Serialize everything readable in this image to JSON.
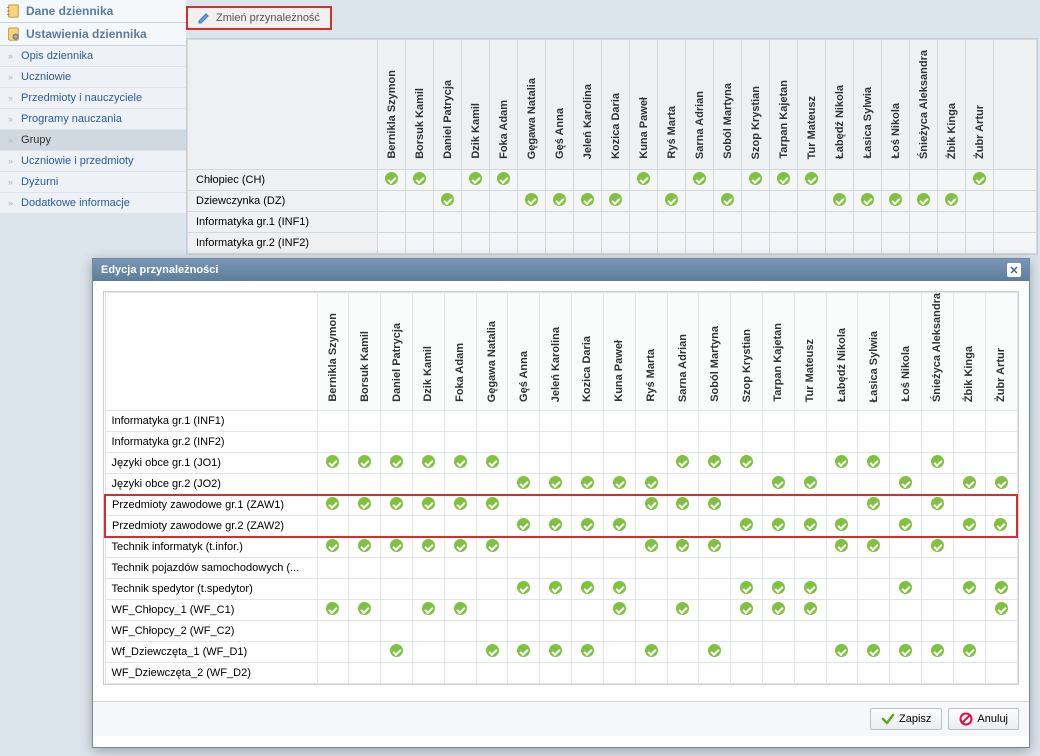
{
  "sidebar": {
    "header1": "Dane dziennika",
    "header2": "Ustawienia dziennika",
    "items": [
      {
        "label": "Opis dziennika"
      },
      {
        "label": "Uczniowie"
      },
      {
        "label": "Przedmioty i nauczyciele"
      },
      {
        "label": "Programy nauczania"
      },
      {
        "label": "Grupy",
        "active": true
      },
      {
        "label": "Uczniowie i przedmioty"
      },
      {
        "label": "Dyżurni"
      },
      {
        "label": "Dodatkowe informacje"
      }
    ]
  },
  "toolbar": {
    "change_btn": "Zmień przynależność"
  },
  "students": [
    "Bernikla Szymon",
    "Borsuk Kamil",
    "Daniel Patrycja",
    "Dzik Kamil",
    "Foka Adam",
    "Gęgawa Natalia",
    "Gęś Anna",
    "Jeleń Karolina",
    "Kozica Daria",
    "Kuna Paweł",
    "Ryś Marta",
    "Sarna Adrian",
    "Soból Martyna",
    "Szop Krystian",
    "Tarpan Kajetan",
    "Tur Mateusz",
    "Łabędź Nikola",
    "Łasica Sylwia",
    "Łoś Nikola",
    "Śnieżyca Aleksandra",
    "Żbik Kinga",
    "Żubr Artur"
  ],
  "bg_rows": [
    {
      "label": "Chłopiec (CH)",
      "checks": [
        1,
        1,
        0,
        1,
        1,
        0,
        0,
        0,
        0,
        1,
        0,
        1,
        0,
        1,
        1,
        1,
        0,
        0,
        0,
        0,
        0,
        1
      ]
    },
    {
      "label": "Dziewczynka (DZ)",
      "checks": [
        0,
        0,
        1,
        0,
        0,
        1,
        1,
        1,
        1,
        0,
        1,
        0,
        1,
        0,
        0,
        0,
        1,
        1,
        1,
        1,
        1,
        0
      ]
    },
    {
      "label": "Informatyka gr.1 (INF1)",
      "checks": [
        0,
        0,
        0,
        0,
        0,
        0,
        0,
        0,
        0,
        0,
        0,
        0,
        0,
        0,
        0,
        0,
        0,
        0,
        0,
        0,
        0,
        0
      ]
    },
    {
      "label": "Informatyka gr.2 (INF2)",
      "checks": [
        0,
        0,
        0,
        0,
        0,
        0,
        0,
        0,
        0,
        0,
        0,
        0,
        0,
        0,
        0,
        0,
        0,
        0,
        0,
        0,
        0,
        0
      ]
    }
  ],
  "dialog": {
    "title": "Edycja przynależności",
    "rows": [
      {
        "label": "Informatyka gr.1 (INF1)",
        "checks": [
          0,
          0,
          0,
          0,
          0,
          0,
          0,
          0,
          0,
          0,
          0,
          0,
          0,
          0,
          0,
          0,
          0,
          0,
          0,
          0,
          0,
          0
        ]
      },
      {
        "label": "Informatyka gr.2 (INF2)",
        "checks": [
          0,
          0,
          0,
          0,
          0,
          0,
          0,
          0,
          0,
          0,
          0,
          0,
          0,
          0,
          0,
          0,
          0,
          0,
          0,
          0,
          0,
          0
        ]
      },
      {
        "label": "Języki obce gr.1 (JO1)",
        "checks": [
          1,
          1,
          1,
          1,
          1,
          1,
          0,
          0,
          0,
          0,
          0,
          1,
          1,
          1,
          0,
          0,
          1,
          1,
          0,
          1,
          0,
          0
        ]
      },
      {
        "label": "Języki obce gr.2 (JO2)",
        "checks": [
          0,
          0,
          0,
          0,
          0,
          0,
          1,
          1,
          1,
          1,
          1,
          0,
          0,
          0,
          1,
          1,
          0,
          0,
          1,
          0,
          1,
          1
        ]
      },
      {
        "label": "Przedmioty zawodowe gr.1 (ZAW1)",
        "hl": "top",
        "checks": [
          1,
          1,
          1,
          1,
          1,
          1,
          0,
          0,
          0,
          0,
          1,
          1,
          1,
          0,
          0,
          0,
          0,
          1,
          0,
          1,
          0,
          0
        ]
      },
      {
        "label": "Przedmioty zawodowe gr.2 (ZAW2)",
        "hl": "bot",
        "checks": [
          0,
          0,
          0,
          0,
          0,
          0,
          1,
          1,
          1,
          1,
          0,
          0,
          0,
          1,
          1,
          1,
          1,
          0,
          1,
          0,
          1,
          1
        ]
      },
      {
        "label": "Technik informatyk (t.infor.)",
        "checks": [
          1,
          1,
          1,
          1,
          1,
          1,
          0,
          0,
          0,
          0,
          1,
          1,
          1,
          0,
          0,
          0,
          1,
          1,
          0,
          1,
          0,
          0
        ]
      },
      {
        "label": "Technik pojazdów samochodowych (...",
        "checks": [
          0,
          0,
          0,
          0,
          0,
          0,
          0,
          0,
          0,
          0,
          0,
          0,
          0,
          0,
          0,
          0,
          0,
          0,
          0,
          0,
          0,
          0
        ]
      },
      {
        "label": "Technik spedytor (t.spedytor)",
        "checks": [
          0,
          0,
          0,
          0,
          0,
          0,
          1,
          1,
          1,
          1,
          0,
          0,
          0,
          1,
          1,
          1,
          0,
          0,
          1,
          0,
          1,
          1
        ]
      },
      {
        "label": "WF_Chłopcy_1 (WF_C1)",
        "checks": [
          1,
          1,
          0,
          1,
          1,
          0,
          0,
          0,
          0,
          1,
          0,
          1,
          0,
          1,
          1,
          1,
          0,
          0,
          0,
          0,
          0,
          1
        ]
      },
      {
        "label": "WF_Chłopcy_2 (WF_C2)",
        "checks": [
          0,
          0,
          0,
          0,
          0,
          0,
          0,
          0,
          0,
          0,
          0,
          0,
          0,
          0,
          0,
          0,
          0,
          0,
          0,
          0,
          0,
          0
        ]
      },
      {
        "label": "Wf_Dziewczęta_1 (WF_D1)",
        "checks": [
          0,
          0,
          1,
          0,
          0,
          1,
          1,
          1,
          1,
          0,
          1,
          0,
          1,
          0,
          0,
          0,
          1,
          1,
          1,
          1,
          1,
          0
        ]
      },
      {
        "label": "WF_Dziewczęta_2 (WF_D2)",
        "checks": [
          0,
          0,
          0,
          0,
          0,
          0,
          0,
          0,
          0,
          0,
          0,
          0,
          0,
          0,
          0,
          0,
          0,
          0,
          0,
          0,
          0,
          0
        ]
      }
    ],
    "save": "Zapisz",
    "cancel": "Anuluj"
  },
  "colors": {
    "accent_red": "#d32f2f",
    "check_green": "#7fc241",
    "dialog_header": "#5d7d9d"
  }
}
